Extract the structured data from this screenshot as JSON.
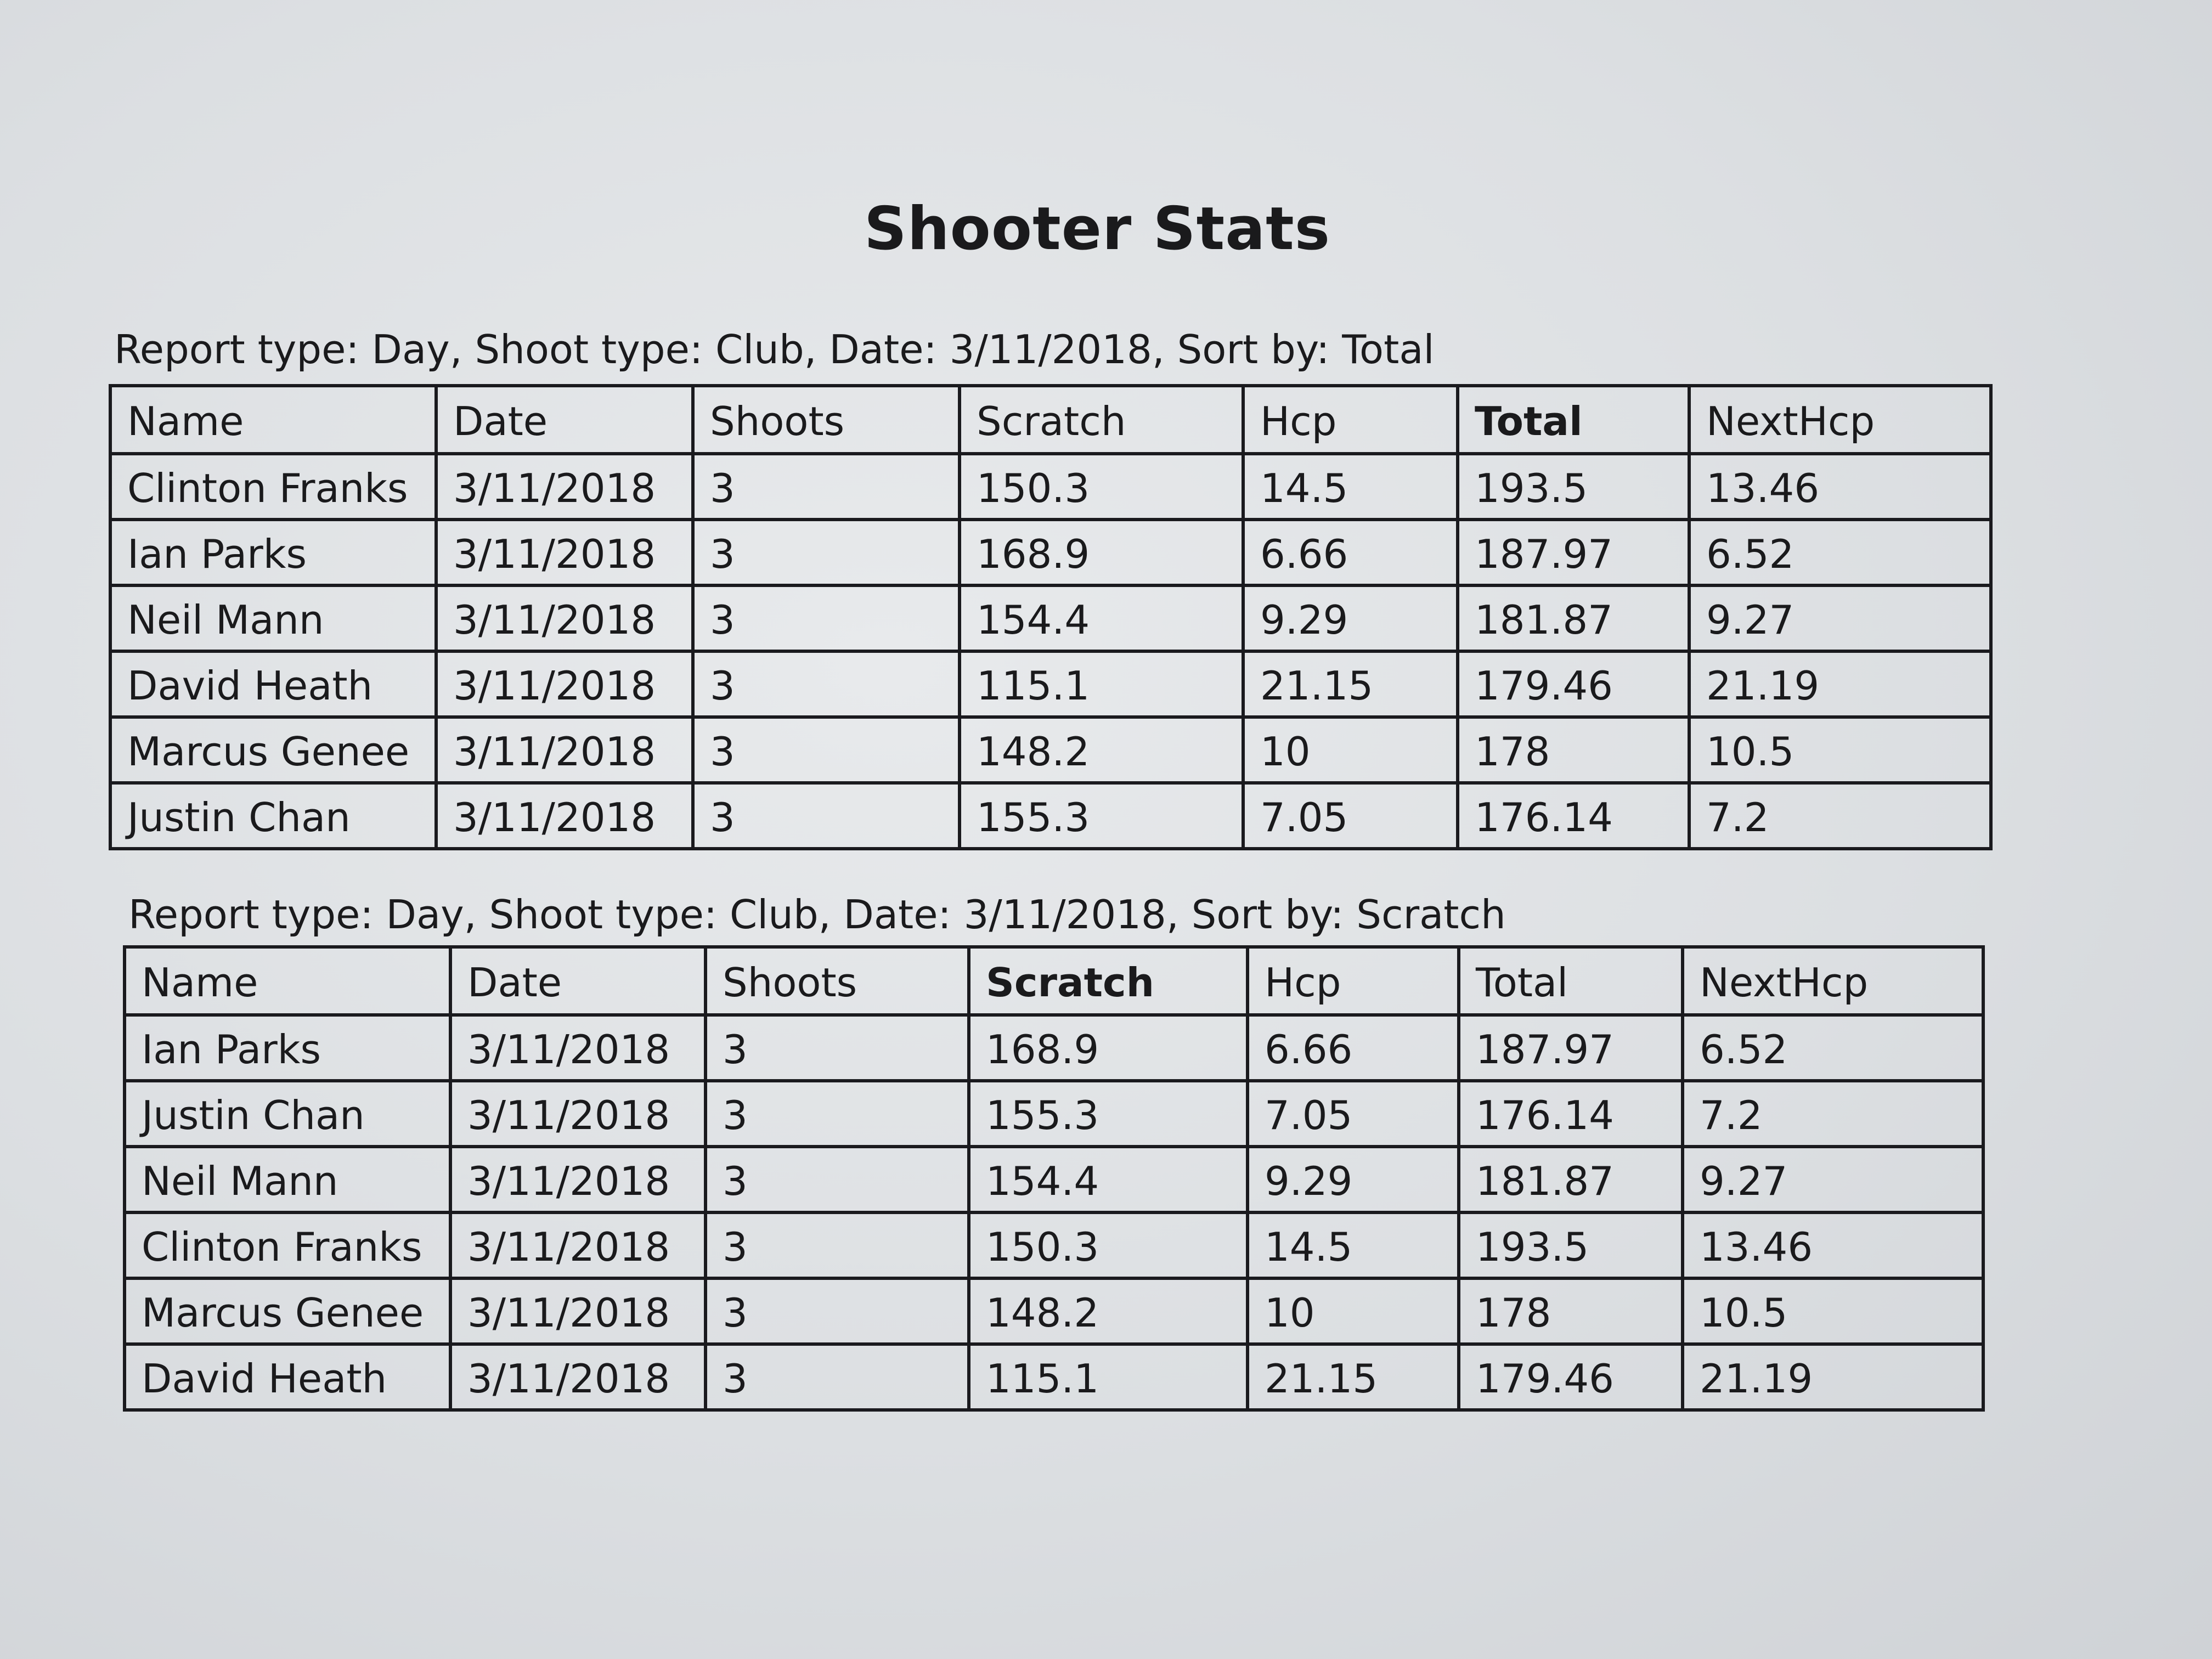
{
  "title": "Shooter Stats",
  "tables": [
    {
      "caption": "Report type: Day,  Shoot type: Club,  Date: 3/11/2018,  Sort by: Total",
      "sort_column": "Total",
      "columns": [
        "Name",
        "Date",
        "Shoots",
        "Scratch",
        "Hcp",
        "Total",
        "NextHcp"
      ],
      "rows": [
        [
          "Clinton Franks",
          "3/11/2018",
          "3",
          "150.3",
          "14.5",
          "193.5",
          "13.46"
        ],
        [
          "Ian Parks",
          "3/11/2018",
          "3",
          "168.9",
          "6.66",
          "187.97",
          "6.52"
        ],
        [
          "Neil Mann",
          "3/11/2018",
          "3",
          "154.4",
          "9.29",
          "181.87",
          "9.27"
        ],
        [
          "David Heath",
          "3/11/2018",
          "3",
          "115.1",
          "21.15",
          "179.46",
          "21.19"
        ],
        [
          "Marcus Genee",
          "3/11/2018",
          "3",
          "148.2",
          "10",
          "178",
          "10.5"
        ],
        [
          "Justin Chan",
          "3/11/2018",
          "3",
          "155.3",
          "7.05",
          "176.14",
          "7.2"
        ]
      ]
    },
    {
      "caption": "Report type: Day,  Shoot type: Club,  Date: 3/11/2018,  Sort by: Scratch",
      "sort_column": "Scratch",
      "columns": [
        "Name",
        "Date",
        "Shoots",
        "Scratch",
        "Hcp",
        "Total",
        "NextHcp"
      ],
      "rows": [
        [
          "Ian Parks",
          "3/11/2018",
          "3",
          "168.9",
          "6.66",
          "187.97",
          "6.52"
        ],
        [
          "Justin Chan",
          "3/11/2018",
          "3",
          "155.3",
          "7.05",
          "176.14",
          "7.2"
        ],
        [
          "Neil Mann",
          "3/11/2018",
          "3",
          "154.4",
          "9.29",
          "181.87",
          "9.27"
        ],
        [
          "Clinton Franks",
          "3/11/2018",
          "3",
          "150.3",
          "14.5",
          "193.5",
          "13.46"
        ],
        [
          "Marcus Genee",
          "3/11/2018",
          "3",
          "148.2",
          "10",
          "178",
          "10.5"
        ],
        [
          "David Heath",
          "3/11/2018",
          "3",
          "115.1",
          "21.15",
          "179.46",
          "21.19"
        ]
      ]
    }
  ]
}
